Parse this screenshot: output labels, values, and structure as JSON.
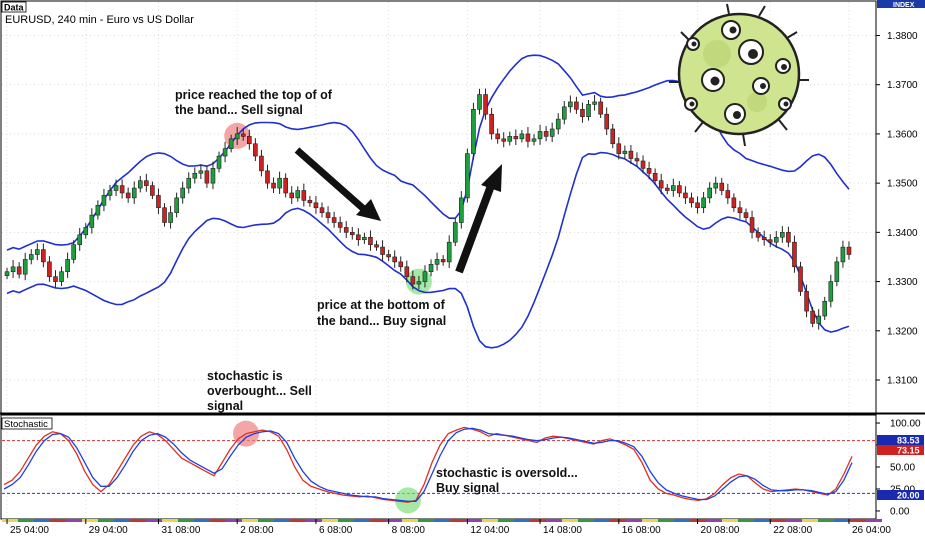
{
  "header": {
    "panel_tag": "Data",
    "chart_title": "EURUSD, 240 min - Euro vs US Dollar",
    "index_label": "INDEX"
  },
  "stoch_panel": {
    "title": "Stochastic"
  },
  "annotations": {
    "sell_top_line1": "price reached the top of of",
    "sell_top_line2": "the band... Sell signal",
    "buy_bottom_line1": "price at the bottom of",
    "buy_bottom_line2": "the band... Buy signal",
    "stoch_ob_line1": "stochastic is",
    "stoch_ob_line2": "overbought... Sell",
    "stoch_ob_line3": "signal",
    "stoch_os_line1": "stochastic is oversold...",
    "stoch_os_line2": "Buy signal"
  },
  "colors": {
    "bull_candle": "#1e9e3e",
    "bear_candle": "#cc2222",
    "bands": "#1f2fd0",
    "stoch_main": "#2040e0",
    "stoch_signal": "#e03020",
    "level_high": "#c83232",
    "level_low": "#3030c8",
    "sell_marker": "#f08080",
    "buy_marker": "#80e080"
  },
  "chart_data": [
    {
      "type": "candlestick",
      "title": "EURUSD, 240 min - Euro vs US Dollar",
      "x_ticks": [
        "25 04:00",
        "29 04:00",
        "31 08:00",
        "2 08:00",
        "6 08:00",
        "8 08:00",
        "12 04:00",
        "14 08:00",
        "16 08:00",
        "20 08:00",
        "22 08:00",
        "26 04:00"
      ],
      "y_ticks": [
        "1.3800",
        "1.3700",
        "1.3600",
        "1.3500",
        "1.3400",
        "1.3300",
        "1.3200",
        "1.3100"
      ],
      "ylim": [
        1.3035,
        1.3868
      ],
      "close_series": [
        1.332,
        1.333,
        1.3315,
        1.3345,
        1.3355,
        1.3365,
        1.334,
        1.331,
        1.33,
        1.332,
        1.3345,
        1.3375,
        1.3395,
        1.341,
        1.3435,
        1.3455,
        1.3475,
        1.3485,
        1.3495,
        1.348,
        1.347,
        1.349,
        1.3505,
        1.3495,
        1.3475,
        1.345,
        1.342,
        1.344,
        1.347,
        1.349,
        1.351,
        1.352,
        1.3525,
        1.35,
        1.353,
        1.3555,
        1.357,
        1.359,
        1.36,
        1.3595,
        1.358,
        1.3555,
        1.3525,
        1.35,
        1.349,
        1.351,
        1.348,
        1.347,
        1.3485,
        1.3465,
        1.346,
        1.345,
        1.344,
        1.343,
        1.342,
        1.341,
        1.34,
        1.3395,
        1.3385,
        1.339,
        1.3375,
        1.337,
        1.3355,
        1.335,
        1.334,
        1.333,
        1.331,
        1.3295,
        1.33,
        1.332,
        1.3335,
        1.3345,
        1.334,
        1.338,
        1.342,
        1.347,
        1.356,
        1.365,
        1.368,
        1.364,
        1.36,
        1.359,
        1.3585,
        1.3595,
        1.359,
        1.36,
        1.3585,
        1.359,
        1.3605,
        1.3595,
        1.361,
        1.363,
        1.3655,
        1.3665,
        1.365,
        1.3635,
        1.366,
        1.3665,
        1.364,
        1.361,
        1.358,
        1.356,
        1.3565,
        1.355,
        1.3545,
        1.353,
        1.352,
        1.3505,
        1.349,
        1.3485,
        1.3495,
        1.348,
        1.347,
        1.346,
        1.345,
        1.347,
        1.349,
        1.35,
        1.3485,
        1.347,
        1.345,
        1.344,
        1.343,
        1.34,
        1.339,
        1.3385,
        1.338,
        1.339,
        1.34,
        1.338,
        1.333,
        1.328,
        1.324,
        1.3215,
        1.323,
        1.326,
        1.33,
        1.334,
        1.337,
        1.3355
      ]
    },
    {
      "type": "line",
      "title": "Stochastic",
      "y_ticks": [
        "100.00",
        "75.00",
        "50.00",
        "25.00",
        "0.00"
      ],
      "ylim": [
        -8,
        108
      ],
      "levels": [
        80,
        20
      ],
      "current_values": [
        "83.53",
        "73.15",
        "20.00"
      ],
      "series": [
        {
          "values": [
            30,
            35,
            45,
            60,
            75,
            85,
            90,
            88,
            80,
            65,
            45,
            30,
            22,
            30,
            45,
            60,
            75,
            85,
            90,
            87,
            80,
            70,
            60,
            55,
            50,
            45,
            40,
            55,
            70,
            82,
            88,
            90,
            92,
            90,
            85,
            70,
            50,
            35,
            28,
            25,
            22,
            20,
            18,
            17,
            16,
            17,
            15,
            13,
            12,
            11,
            10,
            12,
            30,
            55,
            75,
            88,
            92,
            95,
            93,
            90,
            85,
            88,
            86,
            84,
            82,
            80,
            78,
            83,
            85,
            84,
            82,
            80,
            78,
            76,
            80,
            82,
            79,
            75,
            70,
            55,
            35,
            25,
            20,
            18,
            15,
            13,
            12,
            14,
            20,
            30,
            38,
            42,
            40,
            32,
            25,
            22,
            23,
            24,
            25,
            24,
            22,
            20,
            18,
            25,
            42,
            62
          ]
        },
        {
          "values": [
            25,
            30,
            38,
            52,
            68,
            80,
            87,
            88,
            84,
            72,
            55,
            38,
            28,
            28,
            38,
            52,
            68,
            80,
            86,
            88,
            84,
            76,
            66,
            58,
            53,
            48,
            43,
            48,
            62,
            75,
            84,
            88,
            90,
            91,
            88,
            78,
            60,
            45,
            34,
            28,
            24,
            22,
            20,
            18,
            17,
            16,
            16,
            14,
            13,
            12,
            11,
            11,
            22,
            42,
            63,
            80,
            89,
            93,
            94,
            92,
            88,
            87,
            86,
            85,
            83,
            81,
            80,
            81,
            83,
            84,
            83,
            81,
            79,
            77,
            78,
            80,
            80,
            77,
            73,
            62,
            45,
            32,
            24,
            20,
            17,
            15,
            13,
            13,
            17,
            25,
            33,
            39,
            40,
            36,
            29,
            24,
            23,
            23,
            24,
            24,
            23,
            21,
            19,
            22,
            35,
            55
          ]
        }
      ]
    }
  ]
}
